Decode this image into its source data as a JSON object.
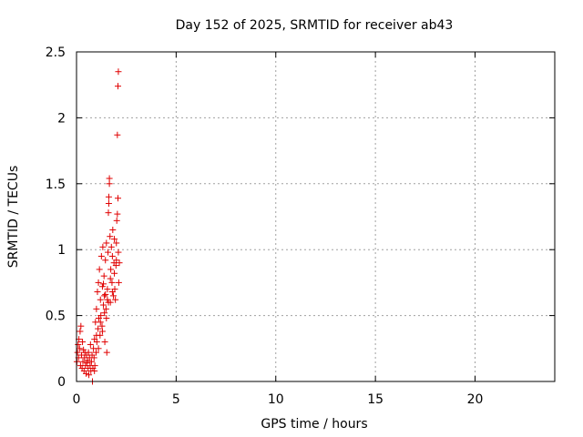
{
  "chart_data": {
    "type": "scatter",
    "title": "Day 152 of 2025, SRMTID for receiver ab43",
    "xlabel": "GPS time / hours",
    "ylabel": "SRMTID / TECUs",
    "xlim": [
      0,
      24
    ],
    "ylim": [
      0,
      2.5
    ],
    "xticks": [
      "0",
      "5",
      "10",
      "15",
      "20"
    ],
    "yticks": [
      "0",
      "0.5",
      "1",
      "1.5",
      "2",
      "2.5"
    ],
    "grid": true,
    "marker": "plus",
    "color": "#e00000",
    "series": [
      {
        "points": [
          [
            0.02,
            0.15
          ],
          [
            0.05,
            0.22
          ],
          [
            0.08,
            0.28
          ],
          [
            0.1,
            0.18
          ],
          [
            0.12,
            0.32
          ],
          [
            0.15,
            0.25
          ],
          [
            0.18,
            0.38
          ],
          [
            0.2,
            0.12
          ],
          [
            0.22,
            0.42
          ],
          [
            0.25,
            0.2
          ],
          [
            0.28,
            0.1
          ],
          [
            0.3,
            0.3
          ],
          [
            0.32,
            0.15
          ],
          [
            0.35,
            0.24
          ],
          [
            0.38,
            0.08
          ],
          [
            0.4,
            0.18
          ],
          [
            0.42,
            0.22
          ],
          [
            0.45,
            0.12
          ],
          [
            0.48,
            0.06
          ],
          [
            0.5,
            0.2
          ],
          [
            0.52,
            0.14
          ],
          [
            0.55,
            0.16
          ],
          [
            0.58,
            0.1
          ],
          [
            0.6,
            0.22
          ],
          [
            0.62,
            0.05
          ],
          [
            0.65,
            0.18
          ],
          [
            0.68,
            0.12
          ],
          [
            0.7,
            0.28
          ],
          [
            0.72,
            0.08
          ],
          [
            0.75,
            0.15
          ],
          [
            0.78,
            0.2
          ],
          [
            0.8,
            0.0
          ],
          [
            0.82,
            0.1
          ],
          [
            0.85,
            0.25
          ],
          [
            0.88,
            0.18
          ],
          [
            0.9,
            0.32
          ],
          [
            0.92,
            0.12
          ],
          [
            0.95,
            0.45
          ],
          [
            0.98,
            0.22
          ],
          [
            1.0,
            0.55
          ],
          [
            1.02,
            0.3
          ],
          [
            1.05,
            0.68
          ],
          [
            1.08,
            0.4
          ],
          [
            1.1,
            0.75
          ],
          [
            1.12,
            0.48
          ],
          [
            1.15,
            0.85
          ],
          [
            1.18,
            0.35
          ],
          [
            1.2,
            0.62
          ],
          [
            1.22,
            0.5
          ],
          [
            1.25,
            0.95
          ],
          [
            1.28,
            0.42
          ],
          [
            1.3,
            0.72
          ],
          [
            1.32,
            1.02
          ],
          [
            1.35,
            0.58
          ],
          [
            1.38,
            0.8
          ],
          [
            1.4,
            0.65
          ],
          [
            1.42,
            0.3
          ],
          [
            1.45,
            0.92
          ],
          [
            1.48,
            0.55
          ],
          [
            1.5,
            1.05
          ],
          [
            1.52,
            0.22
          ],
          [
            1.55,
            0.7
          ],
          [
            1.58,
            0.98
          ],
          [
            1.6,
            1.28
          ],
          [
            1.62,
            1.35
          ],
          [
            1.62,
            1.4
          ],
          [
            1.65,
            1.5
          ],
          [
            1.65,
            1.54
          ],
          [
            1.68,
            1.1
          ],
          [
            1.7,
            0.6
          ],
          [
            1.72,
            0.85
          ],
          [
            1.75,
            1.02
          ],
          [
            1.78,
            0.75
          ],
          [
            1.8,
            0.95
          ],
          [
            1.82,
            1.15
          ],
          [
            1.85,
            0.65
          ],
          [
            1.88,
            0.9
          ],
          [
            1.9,
            1.08
          ],
          [
            1.92,
            0.7
          ],
          [
            1.95,
            0.62
          ],
          [
            1.98,
            0.88
          ],
          [
            2.0,
            1.05
          ],
          [
            2.02,
            1.22
          ],
          [
            2.05,
            1.27
          ],
          [
            2.08,
            1.39
          ],
          [
            2.05,
            1.87
          ],
          [
            2.08,
            2.24
          ],
          [
            2.1,
            2.35
          ],
          [
            2.1,
            0.98
          ],
          [
            2.12,
            0.75
          ],
          [
            2.15,
            0.9
          ],
          [
            1.0,
            0.35
          ],
          [
            1.1,
            0.25
          ],
          [
            0.9,
            0.08
          ],
          [
            1.2,
            0.45
          ],
          [
            1.3,
            0.38
          ],
          [
            1.4,
            0.52
          ],
          [
            1.5,
            0.48
          ],
          [
            1.6,
            0.6
          ],
          [
            1.7,
            0.78
          ],
          [
            1.8,
            0.68
          ],
          [
            1.9,
            0.82
          ],
          [
            2.0,
            0.92
          ],
          [
            1.55,
            0.62
          ],
          [
            1.45,
            0.66
          ],
          [
            1.35,
            0.74
          ]
        ]
      }
    ]
  }
}
